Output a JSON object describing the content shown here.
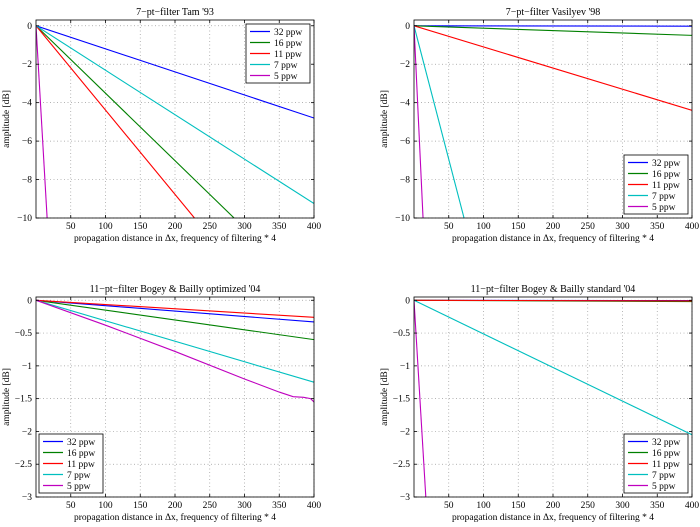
{
  "chart_data": [
    {
      "type": "line",
      "title": "7−pt−filter Tam '93",
      "xlabel": "propagation distance in Δx, frequency of filtering * 4",
      "ylabel": "amplitude [dB]",
      "xlim": [
        0,
        400
      ],
      "ylim": [
        -10,
        0.3
      ],
      "xticks": [
        50,
        100,
        150,
        200,
        250,
        300,
        350,
        400
      ],
      "yticks": [
        0,
        -2,
        -4,
        -6,
        -8,
        -10
      ],
      "ytick_labels": [
        "0",
        "−2",
        "−4",
        "−6",
        "−8",
        "−10"
      ],
      "grid": true,
      "legend_position": "top-right",
      "series": [
        {
          "name": "32 ppw",
          "color": "#0000ff",
          "x": [
            0,
            400
          ],
          "y": [
            0,
            -4.8
          ]
        },
        {
          "name": "16 ppw",
          "color": "#008000",
          "x": [
            0,
            285
          ],
          "y": [
            0,
            -10
          ]
        },
        {
          "name": "11 ppw",
          "color": "#ff0000",
          "x": [
            0,
            228
          ],
          "y": [
            0,
            -10
          ]
        },
        {
          "name": "7 ppw",
          "color": "#00bfbf",
          "x": [
            0,
            400
          ],
          "y": [
            0,
            -9.25
          ]
        },
        {
          "name": "5 ppw",
          "color": "#bf00bf",
          "x": [
            0,
            16
          ],
          "y": [
            0,
            -10
          ]
        }
      ]
    },
    {
      "type": "line",
      "title": "7−pt−filter Vasilyev '98",
      "xlabel": "propagation distance in Δx, frequency of filtering * 4",
      "ylabel": "amplitude [dB]",
      "xlim": [
        0,
        400
      ],
      "ylim": [
        -10,
        0.3
      ],
      "xticks": [
        50,
        100,
        150,
        200,
        250,
        300,
        350,
        400
      ],
      "yticks": [
        0,
        -2,
        -4,
        -6,
        -8,
        -10
      ],
      "ytick_labels": [
        "0",
        "−2",
        "−4",
        "−6",
        "−8",
        "−10"
      ],
      "grid": true,
      "legend_position": "bottom-right",
      "series": [
        {
          "name": "32 ppw",
          "color": "#0000ff",
          "x": [
            0,
            400
          ],
          "y": [
            0,
            -0.02
          ]
        },
        {
          "name": "16 ppw",
          "color": "#008000",
          "x": [
            0,
            400
          ],
          "y": [
            0,
            -0.5
          ]
        },
        {
          "name": "11 ppw",
          "color": "#ff0000",
          "x": [
            0,
            400
          ],
          "y": [
            0,
            -4.4
          ]
        },
        {
          "name": "7 ppw",
          "color": "#00bfbf",
          "x": [
            0,
            72
          ],
          "y": [
            0,
            -10
          ]
        },
        {
          "name": "5 ppw",
          "color": "#bf00bf",
          "x": [
            0,
            13
          ],
          "y": [
            0,
            -10
          ]
        }
      ]
    },
    {
      "type": "line",
      "title": "11−pt−filter Bogey & Bailly optimized '04",
      "xlabel": "propagation distance in Δx, frequency of filtering * 4",
      "ylabel": "amplitude [dB]",
      "xlim": [
        0,
        400
      ],
      "ylim": [
        -3,
        0.05
      ],
      "xticks": [
        50,
        100,
        150,
        200,
        250,
        300,
        350,
        400
      ],
      "yticks": [
        0,
        -0.5,
        -1,
        -1.5,
        -2,
        -2.5,
        -3
      ],
      "ytick_labels": [
        "0",
        "−0.5",
        "−1",
        "−1.5",
        "−2",
        "−2.5",
        "−3"
      ],
      "grid": true,
      "legend_position": "bottom-left",
      "series": [
        {
          "name": "32 ppw",
          "color": "#0000ff",
          "x": [
            0,
            400
          ],
          "y": [
            0,
            -0.33
          ]
        },
        {
          "name": "16 ppw",
          "color": "#008000",
          "x": [
            0,
            400
          ],
          "y": [
            0,
            -0.6
          ]
        },
        {
          "name": "11 ppw",
          "color": "#ff0000",
          "x": [
            0,
            400
          ],
          "y": [
            0,
            -0.26
          ]
        },
        {
          "name": "7 ppw",
          "color": "#00bfbf",
          "x": [
            0,
            400
          ],
          "y": [
            0,
            -1.25
          ]
        },
        {
          "name": "5 ppw",
          "color": "#bf00bf",
          "x": [
            0,
            100,
            200,
            300,
            350,
            370,
            385,
            395,
            400
          ],
          "y": [
            0,
            -0.38,
            -0.78,
            -1.2,
            -1.4,
            -1.47,
            -1.48,
            -1.5,
            -1.55
          ]
        }
      ]
    },
    {
      "type": "line",
      "title": "11−pt−filter Bogey & Bailly standard '04",
      "xlabel": "propagation distance in Δx, frequency of filtering * 4",
      "ylabel": "amplitude [dB]",
      "xlim": [
        0,
        400
      ],
      "ylim": [
        -3,
        0.05
      ],
      "xticks": [
        50,
        100,
        150,
        200,
        250,
        300,
        350,
        400
      ],
      "yticks": [
        0,
        -0.5,
        -1,
        -1.5,
        -2,
        -2.5,
        -3
      ],
      "ytick_labels": [
        "0",
        "−0.5",
        "−1",
        "−1.5",
        "−2",
        "−2.5",
        "−3"
      ],
      "grid": true,
      "legend_position": "bottom-right",
      "series": [
        {
          "name": "32 ppw",
          "color": "#0000ff",
          "x": [
            0,
            400
          ],
          "y": [
            0,
            -0.005
          ]
        },
        {
          "name": "16 ppw",
          "color": "#008000",
          "x": [
            0,
            400
          ],
          "y": [
            0,
            -0.02
          ]
        },
        {
          "name": "11 ppw",
          "color": "#ff0000",
          "x": [
            0,
            400
          ],
          "y": [
            0,
            -0.01
          ]
        },
        {
          "name": "7 ppw",
          "color": "#00bfbf",
          "x": [
            0,
            400
          ],
          "y": [
            0,
            -2.05
          ]
        },
        {
          "name": "5 ppw",
          "color": "#bf00bf",
          "x": [
            0,
            17
          ],
          "y": [
            0,
            -3
          ]
        }
      ]
    }
  ]
}
